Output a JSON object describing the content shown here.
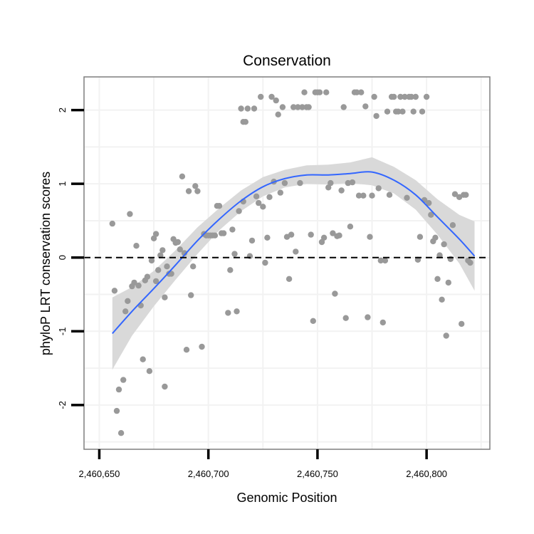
{
  "chart_data": {
    "type": "scatter",
    "title": "Conservation",
    "xlabel": "Genomic Position",
    "ylabel": "phyloP LRT conservation scores",
    "xlim": [
      2460643,
      2460829
    ],
    "ylim": [
      -2.6,
      2.45
    ],
    "x_ticks": [
      2460650,
      2460700,
      2460750,
      2460800
    ],
    "x_tick_labels": [
      "2,460,650",
      "2,460,700",
      "2,460,750",
      "2,460,800"
    ],
    "y_ticks": [
      -2,
      -1,
      0,
      1,
      2
    ],
    "y_tick_labels": [
      "-2",
      "-1",
      "0",
      "1",
      "2"
    ],
    "reference_line": {
      "y": 0,
      "style": "dashed",
      "color": "#000000"
    },
    "colors": {
      "points": "#999999",
      "smooth": "#3366FF",
      "ribbon": "#D9D9D9",
      "grid": "#F2F2F2",
      "frame": "#7F7F7F"
    },
    "points": [
      [
        2460656,
        0.46
      ],
      [
        2460657,
        -0.45
      ],
      [
        2460658,
        -2.08
      ],
      [
        2460659,
        -1.79
      ],
      [
        2460660,
        -2.38
      ],
      [
        2460661,
        -1.66
      ],
      [
        2460662,
        -0.73
      ],
      [
        2460663,
        -0.59
      ],
      [
        2460664,
        0.59
      ],
      [
        2460665,
        -0.39
      ],
      [
        2460666,
        -0.34
      ],
      [
        2460667,
        0.16
      ],
      [
        2460668,
        -0.38
      ],
      [
        2460669,
        -0.65
      ],
      [
        2460670,
        -1.38
      ],
      [
        2460671,
        -0.31
      ],
      [
        2460672,
        -0.26
      ],
      [
        2460673,
        -1.54
      ],
      [
        2460674,
        -0.04
      ],
      [
        2460675,
        0.26
      ],
      [
        2460676,
        0.32
      ],
      [
        2460676,
        -0.32
      ],
      [
        2460677,
        -0.17
      ],
      [
        2460678,
        0.03
      ],
      [
        2460679,
        0.1
      ],
      [
        2460680,
        -1.75
      ],
      [
        2460680,
        -0.54
      ],
      [
        2460681,
        -0.12
      ],
      [
        2460682,
        -0.22
      ],
      [
        2460683,
        -0.22
      ],
      [
        2460684,
        0.25
      ],
      [
        2460685,
        0.2
      ],
      [
        2460686,
        0.21
      ],
      [
        2460687,
        0.11
      ],
      [
        2460688,
        1.1
      ],
      [
        2460689,
        0.06
      ],
      [
        2460690,
        -1.25
      ],
      [
        2460691,
        0.9
      ],
      [
        2460692,
        -0.51
      ],
      [
        2460693,
        -0.12
      ],
      [
        2460694,
        0.97
      ],
      [
        2460695,
        0.9
      ],
      [
        2460697,
        -1.21
      ],
      [
        2460698,
        0.32
      ],
      [
        2460699,
        0.3
      ],
      [
        2460700,
        0.3
      ],
      [
        2460701,
        0.3
      ],
      [
        2460702,
        0.3
      ],
      [
        2460703,
        0.3
      ],
      [
        2460704,
        0.7
      ],
      [
        2460705,
        0.7
      ],
      [
        2460706,
        0.33
      ],
      [
        2460707,
        0.33
      ],
      [
        2460709,
        -0.75
      ],
      [
        2460710,
        -0.17
      ],
      [
        2460711,
        0.38
      ],
      [
        2460712,
        0.05
      ],
      [
        2460713,
        -0.73
      ],
      [
        2460714,
        0.63
      ],
      [
        2460715,
        2.02
      ],
      [
        2460716,
        0.76
      ],
      [
        2460716,
        1.84
      ],
      [
        2460717,
        1.84
      ],
      [
        2460718,
        2.02
      ],
      [
        2460719,
        0.02
      ],
      [
        2460720,
        0.23
      ],
      [
        2460721,
        2.02
      ],
      [
        2460722,
        0.83
      ],
      [
        2460723,
        0.74
      ],
      [
        2460724,
        2.18
      ],
      [
        2460725,
        0.69
      ],
      [
        2460726,
        -0.07
      ],
      [
        2460727,
        0.27
      ],
      [
        2460728,
        0.82
      ],
      [
        2460729,
        2.18
      ],
      [
        2460730,
        1.03
      ],
      [
        2460731,
        2.13
      ],
      [
        2460732,
        1.94
      ],
      [
        2460733,
        0.88
      ],
      [
        2460734,
        2.04
      ],
      [
        2460735,
        1.01
      ],
      [
        2460736,
        0.28
      ],
      [
        2460737,
        -0.29
      ],
      [
        2460738,
        0.31
      ],
      [
        2460739,
        2.04
      ],
      [
        2460740,
        0.08
      ],
      [
        2460741,
        2.04
      ],
      [
        2460742,
        1.01
      ],
      [
        2460743,
        2.04
      ],
      [
        2460744,
        2.24
      ],
      [
        2460745,
        2.04
      ],
      [
        2460746,
        2.04
      ],
      [
        2460747,
        0.31
      ],
      [
        2460748,
        -0.86
      ],
      [
        2460749,
        2.24
      ],
      [
        2460750,
        2.24
      ],
      [
        2460751,
        2.24
      ],
      [
        2460752,
        0.21
      ],
      [
        2460753,
        0.27
      ],
      [
        2460754,
        2.24
      ],
      [
        2460755,
        0.95
      ],
      [
        2460756,
        1.01
      ],
      [
        2460757,
        0.33
      ],
      [
        2460758,
        -0.49
      ],
      [
        2460759,
        0.29
      ],
      [
        2460760,
        0.3
      ],
      [
        2460761,
        0.91
      ],
      [
        2460762,
        2.04
      ],
      [
        2460763,
        -0.82
      ],
      [
        2460764,
        1.01
      ],
      [
        2460765,
        0.42
      ],
      [
        2460766,
        1.02
      ],
      [
        2460767,
        2.24
      ],
      [
        2460768,
        2.24
      ],
      [
        2460769,
        0.84
      ],
      [
        2460770,
        2.24
      ],
      [
        2460771,
        0.84
      ],
      [
        2460772,
        2.05
      ],
      [
        2460773,
        -0.81
      ],
      [
        2460774,
        0.28
      ],
      [
        2460775,
        0.84
      ],
      [
        2460776,
        2.18
      ],
      [
        2460777,
        1.92
      ],
      [
        2460778,
        0.94
      ],
      [
        2460779,
        -0.04
      ],
      [
        2460780,
        -0.88
      ],
      [
        2460781,
        -0.04
      ],
      [
        2460782,
        1.98
      ],
      [
        2460783,
        0.85
      ],
      [
        2460784,
        2.18
      ],
      [
        2460785,
        2.18
      ],
      [
        2460786,
        1.98
      ],
      [
        2460787,
        1.98
      ],
      [
        2460788,
        2.18
      ],
      [
        2460789,
        1.98
      ],
      [
        2460790,
        2.18
      ],
      [
        2460791,
        0.81
      ],
      [
        2460792,
        2.18
      ],
      [
        2460793,
        2.18
      ],
      [
        2460794,
        1.98
      ],
      [
        2460795,
        2.18
      ],
      [
        2460796,
        -0.03
      ],
      [
        2460797,
        0.28
      ],
      [
        2460798,
        1.98
      ],
      [
        2460799,
        0.78
      ],
      [
        2460800,
        2.18
      ],
      [
        2460801,
        0.74
      ],
      [
        2460802,
        0.58
      ],
      [
        2460803,
        0.22
      ],
      [
        2460804,
        0.27
      ],
      [
        2460805,
        -0.29
      ],
      [
        2460806,
        0.03
      ],
      [
        2460807,
        -0.57
      ],
      [
        2460808,
        0.18
      ],
      [
        2460809,
        -1.06
      ],
      [
        2460810,
        -0.34
      ],
      [
        2460811,
        -0.02
      ],
      [
        2460812,
        0.44
      ],
      [
        2460813,
        0.86
      ],
      [
        2460815,
        0.82
      ],
      [
        2460816,
        -0.9
      ],
      [
        2460817,
        0.85
      ],
      [
        2460818,
        0.85
      ],
      [
        2460819,
        -0.04
      ],
      [
        2460820,
        -0.07
      ]
    ],
    "smooth": {
      "x": [
        2460656,
        2460665,
        2460675,
        2460685,
        2460695,
        2460705,
        2460715,
        2460725,
        2460735,
        2460745,
        2460755,
        2460765,
        2460775,
        2460785,
        2460795,
        2460805,
        2460815,
        2460822
      ],
      "y": [
        -1.03,
        -0.73,
        -0.42,
        -0.1,
        0.23,
        0.52,
        0.77,
        0.96,
        1.07,
        1.12,
        1.12,
        1.14,
        1.16,
        1.05,
        0.85,
        0.55,
        0.25,
        0.02
      ],
      "lower": [
        -1.52,
        -1.06,
        -0.66,
        -0.3,
        0.05,
        0.37,
        0.63,
        0.83,
        0.95,
        1.0,
        0.99,
        1.01,
        0.98,
        0.87,
        0.65,
        0.31,
        -0.08,
        -0.45
      ],
      "upper": [
        -0.54,
        -0.4,
        -0.18,
        0.1,
        0.41,
        0.67,
        0.91,
        1.09,
        1.19,
        1.25,
        1.26,
        1.29,
        1.36,
        1.23,
        1.05,
        0.79,
        0.58,
        0.49
      ]
    }
  }
}
